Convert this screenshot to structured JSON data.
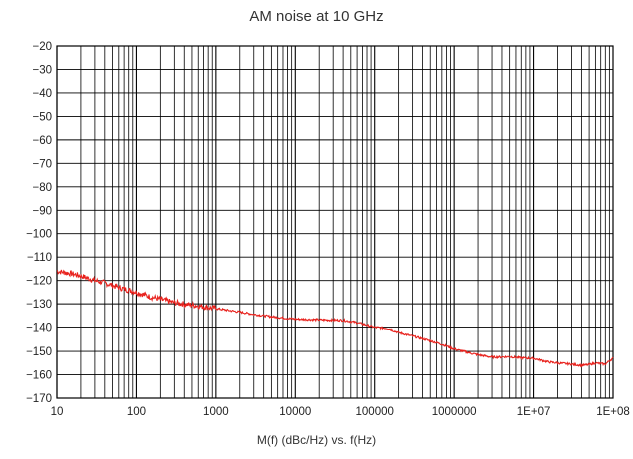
{
  "chart_data": {
    "type": "line",
    "title": "AM noise at 10 GHz",
    "xlabel": "M(f) (dBc/Hz) vs. f(Hz)",
    "ylabel": "",
    "x_scale": "log",
    "xlim": [
      10,
      100000000
    ],
    "ylim": [
      -170,
      -20
    ],
    "grid": true,
    "x_tick_labels": [
      "10",
      "100",
      "1000",
      "10000",
      "100000",
      "1000000",
      "1E+07",
      "1E+08"
    ],
    "y_tick_labels": [
      "−20",
      "−30",
      "−40",
      "−50",
      "−60",
      "−70",
      "−80",
      "−90",
      "−100",
      "−110",
      "−120",
      "−130",
      "−140",
      "−150",
      "−160",
      "−170"
    ],
    "series": [
      {
        "color": "#e8211c",
        "x": [
          10,
          15,
          20,
          30,
          40,
          60,
          100,
          150,
          200,
          300,
          500,
          1000,
          2000,
          3000,
          5000,
          10000,
          20000,
          40000,
          60000,
          100000,
          150000,
          200000,
          300000,
          500000,
          700000,
          1000000,
          1500000,
          2000000,
          3000000,
          5000000,
          7000000,
          10000000,
          15000000,
          20000000,
          30000000,
          40000000,
          50000000,
          60000000,
          70000000,
          80000000,
          90000000,
          100000000
        ],
        "y": [
          -116,
          -117,
          -118,
          -120,
          -121,
          -123,
          -125,
          -127,
          -128,
          -129.5,
          -130.5,
          -132,
          -133.5,
          -134.5,
          -135.5,
          -136.5,
          -136.8,
          -137,
          -138,
          -140,
          -140.5,
          -142,
          -143.5,
          -145.5,
          -147,
          -149,
          -150.5,
          -151.5,
          -152.5,
          -152.3,
          -152.8,
          -153,
          -154.5,
          -155,
          -155.5,
          -156,
          -155.7,
          -155,
          -155.3,
          -155.5,
          -154,
          -153
        ]
      }
    ]
  }
}
